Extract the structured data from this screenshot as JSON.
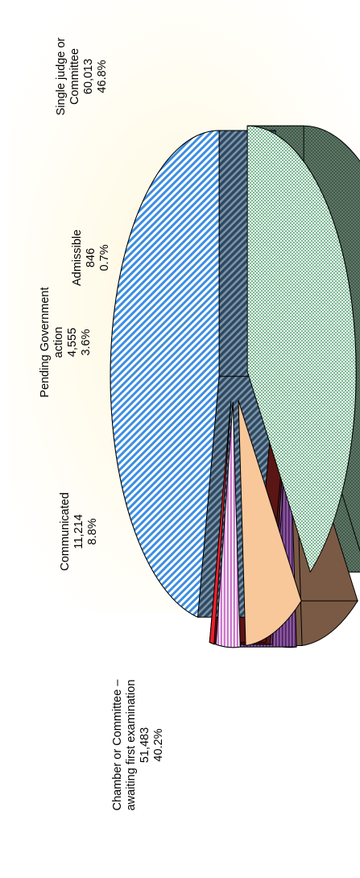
{
  "chart_data": {
    "type": "pie",
    "style": "3d-exploded",
    "orientation": "rotated-90-ccw",
    "slices": [
      {
        "label_lines": [
          "Chamber or Committee –",
          "awaiting first examination"
        ],
        "value": 51483,
        "value_text": "51,483",
        "percent_text": "40.2%",
        "percent": 40.2,
        "top_color": "#2e8b57",
        "side_color": "#3c5446",
        "pattern": "dots"
      },
      {
        "label_lines": [
          "Communicated"
        ],
        "value": 11214,
        "value_text": "11,214",
        "percent_text": "8.8%",
        "percent": 8.8,
        "top_color": "#f9c89a",
        "side_color": "#7a5a45",
        "pattern": "solid"
      },
      {
        "label_lines": [
          "Pending Government",
          "action"
        ],
        "value": 4555,
        "value_text": "4,555",
        "percent_text": "3.6%",
        "percent": 3.6,
        "top_color": "#cc77cc",
        "side_color": "#5a2b70",
        "pattern": "vertical-lines"
      },
      {
        "label_lines": [
          "Admissible"
        ],
        "value": 846,
        "value_text": "846",
        "percent_text": "0.7%",
        "percent": 0.7,
        "top_color": "#e8202a",
        "side_color": "#5a1515",
        "pattern": "solid"
      },
      {
        "label_lines": [
          "Single judge or",
          "Committee"
        ],
        "value": 60013,
        "value_text": "60,013",
        "percent_text": "46.8%",
        "percent": 46.8,
        "top_color": "#3d8ee0",
        "side_color": "#34506c",
        "pattern": "diagonal-lines"
      }
    ],
    "background_color": "#fff8dc",
    "legend": "none"
  }
}
